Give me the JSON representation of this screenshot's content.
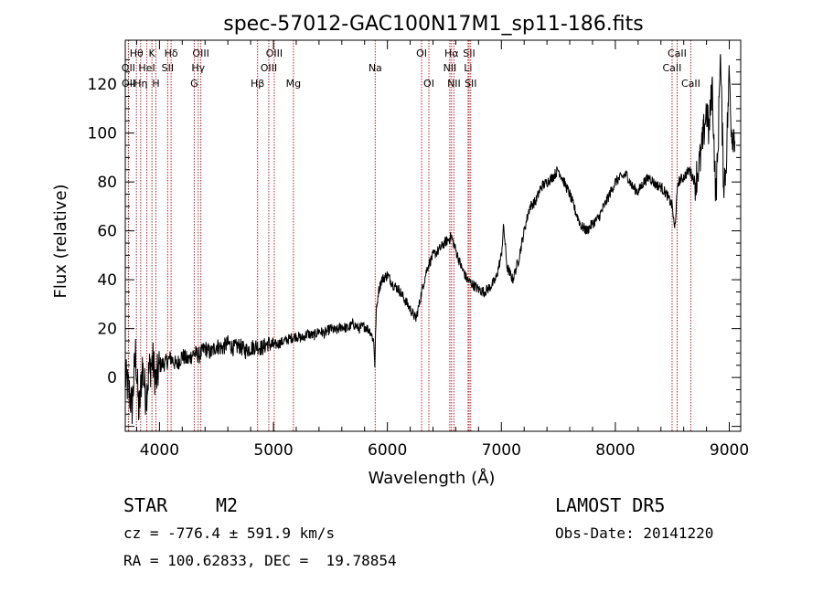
{
  "chart_data": {
    "type": "line",
    "title": "spec-57012-GAC100N17M1_sp11-186.fits",
    "xlabel": "Wavelength (Å)",
    "ylabel": "Flux (relative)",
    "xlim": [
      3700,
      9100
    ],
    "ylim": [
      -22,
      138
    ],
    "xticks": [
      4000,
      5000,
      6000,
      7000,
      8000,
      9000
    ],
    "yticks": [
      0,
      20,
      40,
      60,
      80,
      100,
      120
    ],
    "grid": false,
    "line_color": "#000000",
    "marker_color": "#b22222",
    "series": [
      {
        "x": [
          3700,
          3730,
          3760,
          3790,
          3820,
          3850,
          3880,
          3910,
          3940,
          3970,
          4000,
          4050,
          4100,
          4150,
          4200,
          4250,
          4300,
          4350,
          4400,
          4450,
          4500,
          4550,
          4600,
          4650,
          4700,
          4750,
          4800,
          4850,
          4900,
          4950,
          5000,
          5050,
          5100,
          5150,
          5200,
          5250,
          5300,
          5350,
          5400,
          5450,
          5500,
          5550,
          5600,
          5650,
          5700,
          5750,
          5800,
          5850,
          5880,
          5890,
          5900,
          5920,
          5950,
          6000,
          6050,
          6100,
          6150,
          6200,
          6250,
          6280,
          6300,
          6350,
          6400,
          6450,
          6500,
          6550,
          6560,
          6600,
          6650,
          6700,
          6750,
          6800,
          6850,
          6900,
          6950,
          7000,
          7020,
          7050,
          7100,
          7150,
          7200,
          7250,
          7300,
          7350,
          7400,
          7450,
          7500,
          7550,
          7600,
          7650,
          7700,
          7750,
          7800,
          7850,
          7900,
          7950,
          8000,
          8050,
          8100,
          8150,
          8200,
          8250,
          8300,
          8350,
          8400,
          8450,
          8500,
          8520,
          8550,
          8600,
          8650,
          8700,
          8750,
          8800,
          8820,
          8850,
          8880,
          8900,
          8920,
          8950,
          8970,
          9000,
          9020,
          9050
        ],
        "y": [
          0,
          -5,
          -12,
          10,
          -15,
          5,
          -8,
          3,
          7,
          -2,
          5,
          6,
          8,
          5,
          9,
          7,
          10,
          9,
          12,
          10,
          13,
          12,
          14,
          12,
          13,
          11,
          12,
          13,
          12,
          14,
          13,
          14,
          15,
          16,
          17,
          16,
          18,
          17,
          19,
          18,
          20,
          19,
          21,
          20,
          22,
          20,
          21,
          19,
          15,
          5,
          25,
          35,
          40,
          42,
          38,
          36,
          32,
          28,
          24,
          30,
          35,
          45,
          50,
          52,
          55,
          57,
          58,
          52,
          45,
          40,
          38,
          36,
          35,
          37,
          40,
          50,
          62,
          45,
          40,
          48,
          60,
          70,
          72,
          78,
          80,
          82,
          85,
          80,
          75,
          68,
          62,
          60,
          63,
          65,
          70,
          75,
          80,
          82,
          83,
          78,
          76,
          80,
          82,
          79,
          78,
          75,
          70,
          60,
          80,
          82,
          85,
          80,
          90,
          110,
          100,
          120,
          75,
          90,
          135,
          80,
          85,
          125,
          100,
          100
        ]
      }
    ],
    "line_markers": [
      {
        "label": "Hθ",
        "x": 3798,
        "row": 0
      },
      {
        "label": "K",
        "x": 3934,
        "row": 0
      },
      {
        "label": "Hδ",
        "x": 4102,
        "row": 0
      },
      {
        "label": "OIII",
        "x": 4363,
        "row": 0
      },
      {
        "label": "OIII",
        "x": 5007,
        "row": 0
      },
      {
        "label": "OI",
        "x": 6300,
        "row": 0
      },
      {
        "label": "Hα",
        "x": 6563,
        "row": 0
      },
      {
        "label": "SII",
        "x": 6717,
        "row": 0
      },
      {
        "label": "CaII",
        "x": 8542,
        "row": 0
      },
      {
        "label": "OII",
        "x": 3727,
        "row": 1
      },
      {
        "label": "HeI",
        "x": 3889,
        "row": 1
      },
      {
        "label": "SII",
        "x": 4072,
        "row": 1
      },
      {
        "label": "Hγ",
        "x": 4340,
        "row": 1
      },
      {
        "label": "OIII",
        "x": 4959,
        "row": 1
      },
      {
        "label": "Na",
        "x": 5893,
        "row": 1
      },
      {
        "label": "NII",
        "x": 6548,
        "row": 1
      },
      {
        "label": "Li",
        "x": 6708,
        "row": 1
      },
      {
        "label": "CaII",
        "x": 8498,
        "row": 1
      },
      {
        "label": "OII",
        "x": 3729,
        "row": 2
      },
      {
        "label": "Hη",
        "x": 3835,
        "row": 2
      },
      {
        "label": "H",
        "x": 3969,
        "row": 2
      },
      {
        "label": "G",
        "x": 4305,
        "row": 2
      },
      {
        "label": "Hβ",
        "x": 4861,
        "row": 2
      },
      {
        "label": "Mg",
        "x": 5175,
        "row": 2
      },
      {
        "label": "OI",
        "x": 6364,
        "row": 2
      },
      {
        "label": "NII",
        "x": 6584,
        "row": 2
      },
      {
        "label": "SII",
        "x": 6731,
        "row": 2
      },
      {
        "label": "CaII",
        "x": 8662,
        "row": 2
      }
    ]
  },
  "info": {
    "object_class": "STAR",
    "subclass": "M2",
    "survey": "LAMOST DR5",
    "redshift": "cz = -776.4 ± 591.9 km/s",
    "obs_date": "Obs-Date: 20141220",
    "coords": "RA = 100.62833, DEC =  19.78854"
  }
}
